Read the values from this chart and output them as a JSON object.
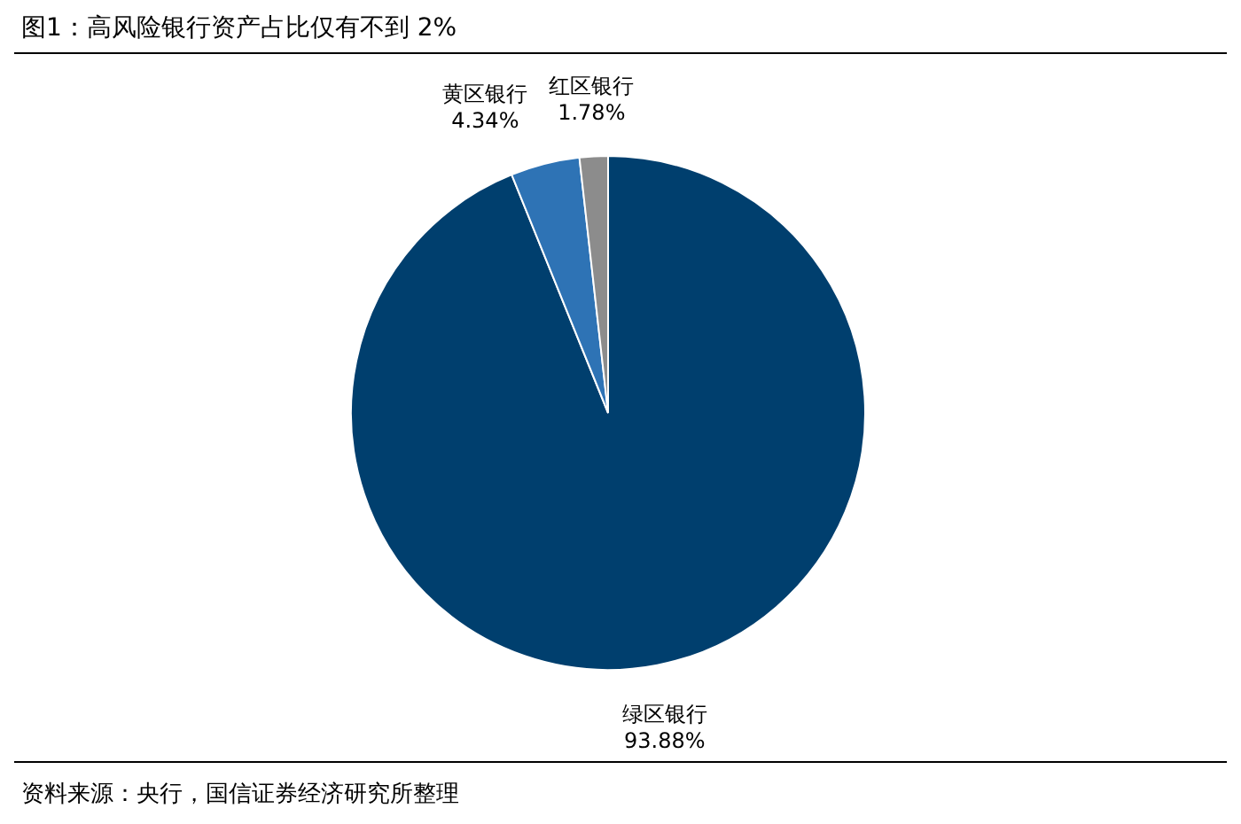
{
  "chart_data": {
    "type": "pie",
    "title": "图1：高风险银行资产占比仅有不到 2%",
    "categories": [
      "绿区银行",
      "黄区银行",
      "红区银行"
    ],
    "values": [
      93.88,
      4.34,
      1.78
    ],
    "colors": [
      "#003f6e",
      "#2e73b5",
      "#8c8c8c"
    ],
    "value_labels": [
      "93.88%",
      "4.34%",
      "1.78%"
    ],
    "annotations": [
      "资料来源：央行，国信证券经济研究所整理"
    ]
  }
}
